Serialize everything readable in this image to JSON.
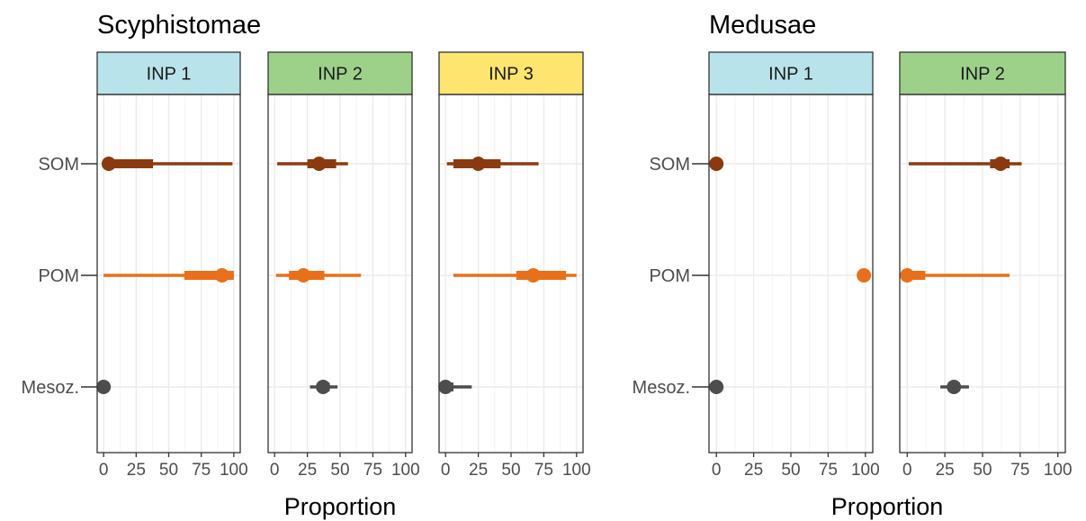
{
  "chart_data": [
    {
      "type": "pointrange",
      "title": "Scyphistomae",
      "xlabel": "Proportion",
      "ylabel": "",
      "xlim": [
        0,
        100
      ],
      "x_ticks": [
        "0",
        "25",
        "50",
        "75",
        "100"
      ],
      "categories": [
        "SOM",
        "POM",
        "Mesoz."
      ],
      "grid": true,
      "panels": [
        {
          "label": "INP 1",
          "strip_color": "#b9e3ea",
          "series": [
            {
              "category": "SOM",
              "color": "#8b3a0f",
              "median": 4,
              "inner": [
                1,
                38
              ],
              "outer": [
                0,
                99
              ]
            },
            {
              "category": "POM",
              "color": "#e8701a",
              "median": 91,
              "inner": [
                62,
                100
              ],
              "outer": [
                0,
                100
              ]
            },
            {
              "category": "Mesoz.",
              "color": "#4d4d4d",
              "median": 0,
              "inner": [
                0,
                0.5
              ],
              "outer": [
                0,
                1
              ]
            }
          ]
        },
        {
          "label": "INP 2",
          "strip_color": "#9dd18a",
          "series": [
            {
              "category": "SOM",
              "color": "#8b3a0f",
              "median": 34,
              "inner": [
                25,
                47
              ],
              "outer": [
                2,
                56
              ]
            },
            {
              "category": "POM",
              "color": "#e8701a",
              "median": 22,
              "inner": [
                11,
                38
              ],
              "outer": [
                1,
                66
              ]
            },
            {
              "category": "Mesoz.",
              "color": "#4d4d4d",
              "median": 37,
              "inner": [
                33,
                42
              ],
              "outer": [
                27,
                48
              ]
            }
          ]
        },
        {
          "label": "INP 3",
          "strip_color": "#fde56f",
          "series": [
            {
              "category": "SOM",
              "color": "#8b3a0f",
              "median": 25,
              "inner": [
                6,
                42
              ],
              "outer": [
                1,
                71
              ]
            },
            {
              "category": "POM",
              "color": "#e8701a",
              "median": 67,
              "inner": [
                54,
                92
              ],
              "outer": [
                6,
                100
              ]
            },
            {
              "category": "Mesoz.",
              "color": "#4d4d4d",
              "median": 0,
              "inner": [
                0,
                6
              ],
              "outer": [
                0,
                20
              ]
            }
          ]
        }
      ]
    },
    {
      "type": "pointrange",
      "title": "Medusae",
      "xlabel": "Proportion",
      "ylabel": "",
      "xlim": [
        0,
        100
      ],
      "x_ticks": [
        "0",
        "25",
        "50",
        "75",
        "100"
      ],
      "categories": [
        "SOM",
        "POM",
        "Mesoz."
      ],
      "grid": true,
      "panels": [
        {
          "label": "INP 1",
          "strip_color": "#b9e3ea",
          "series": [
            {
              "category": "SOM",
              "color": "#8b3a0f",
              "median": 0,
              "inner": [
                0,
                0.5
              ],
              "outer": [
                0,
                1
              ]
            },
            {
              "category": "POM",
              "color": "#e8701a",
              "median": 99,
              "inner": [
                98.5,
                100
              ],
              "outer": [
                98,
                100
              ]
            },
            {
              "category": "Mesoz.",
              "color": "#4d4d4d",
              "median": 0,
              "inner": [
                0,
                0.5
              ],
              "outer": [
                0,
                1
              ]
            }
          ]
        },
        {
          "label": "INP 2",
          "strip_color": "#9dd18a",
          "series": [
            {
              "category": "SOM",
              "color": "#8b3a0f",
              "median": 62,
              "inner": [
                55,
                68
              ],
              "outer": [
                1,
                76
              ]
            },
            {
              "category": "POM",
              "color": "#e8701a",
              "median": 0,
              "inner": [
                0,
                12
              ],
              "outer": [
                0,
                68
              ]
            },
            {
              "category": "Mesoz.",
              "color": "#4d4d4d",
              "median": 31,
              "inner": [
                27,
                35
              ],
              "outer": [
                22,
                41
              ]
            }
          ]
        }
      ]
    }
  ]
}
